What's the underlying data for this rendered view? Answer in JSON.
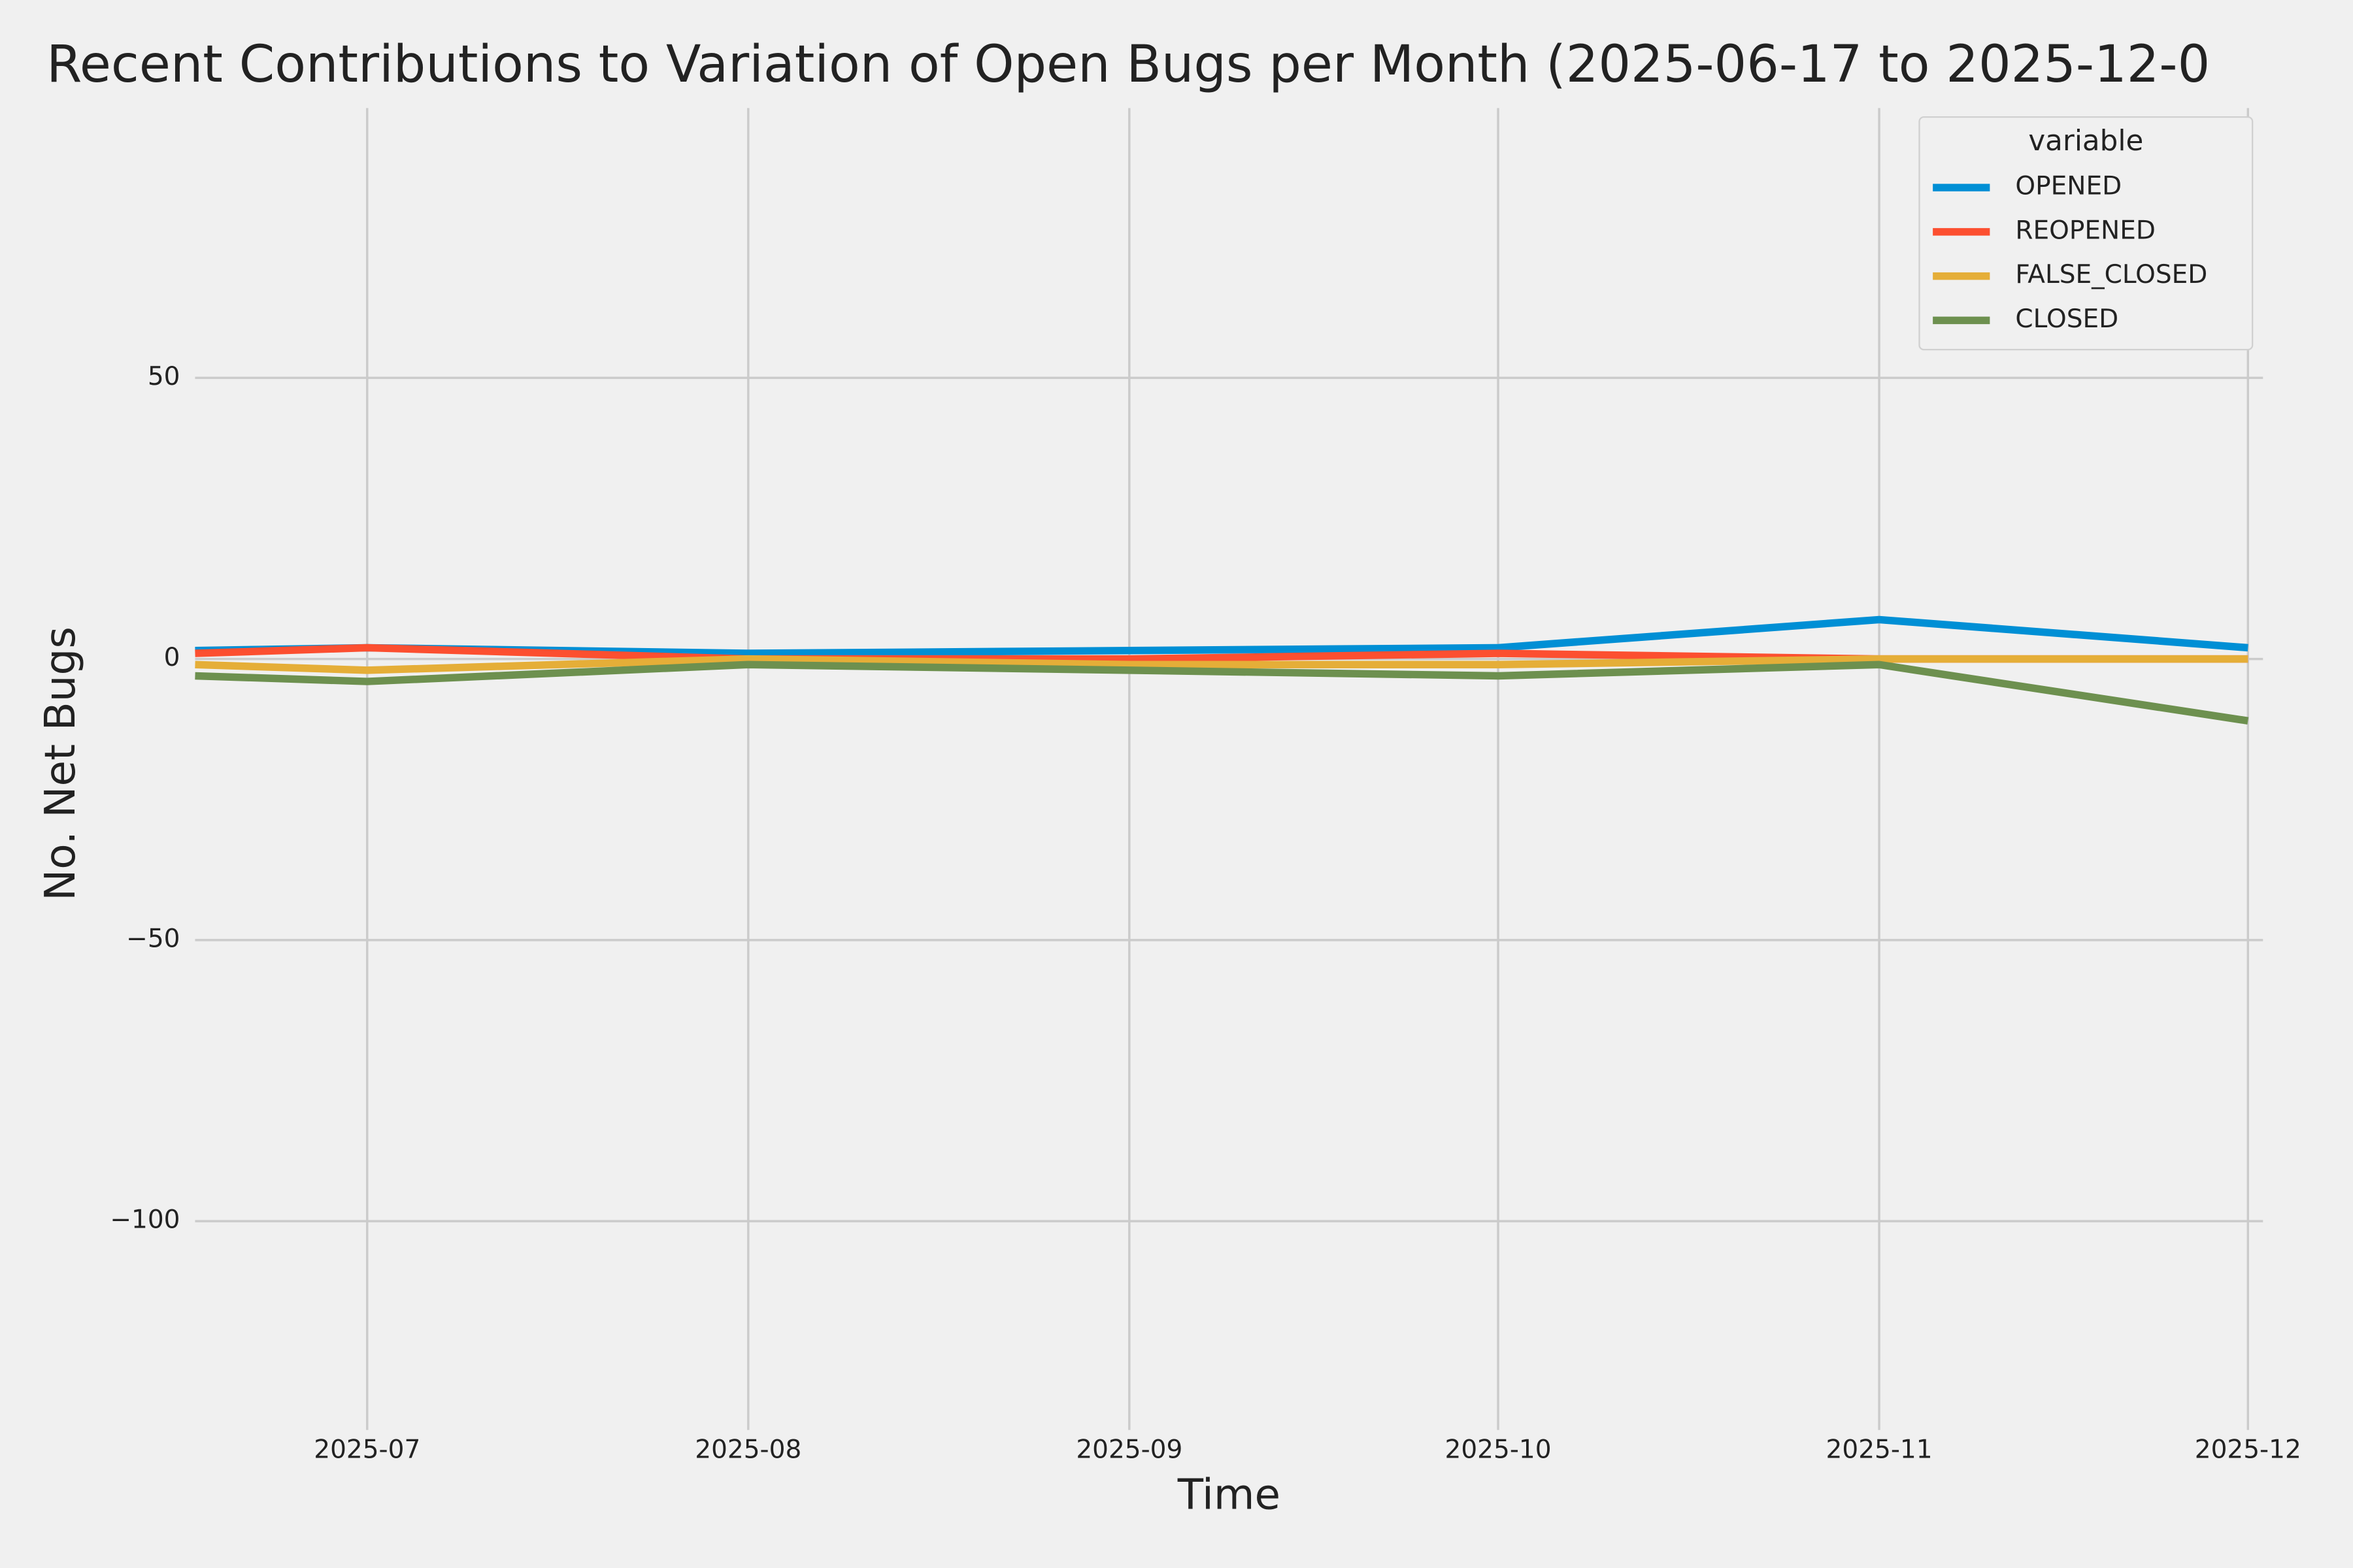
{
  "chart_data": {
    "type": "line",
    "title": "Recent Contributions to Variation of Open Bugs per Month (2025-06-17 to 2025-12-0",
    "x_label": "Time",
    "y_label": "No. Net Bugs",
    "x": [
      "2025-06-17",
      "2025-07",
      "2025-08",
      "2025-09",
      "2025-10",
      "2025-11",
      "2025-12"
    ],
    "series": [
      {
        "name": "OPENED",
        "color": "#008fd5",
        "values": [
          1.5,
          2,
          1,
          1.5,
          2,
          7,
          2
        ]
      },
      {
        "name": "REOPENED",
        "color": "#fc4f30",
        "values": [
          1,
          2,
          0,
          0,
          1,
          0,
          0
        ]
      },
      {
        "name": "FALSE_CLOSED",
        "color": "#e5ae38",
        "values": [
          -1,
          -2,
          0,
          -1,
          -1,
          0,
          0
        ]
      },
      {
        "name": "CLOSED",
        "color": "#6d904f",
        "values": [
          -3,
          -4,
          -1,
          -2,
          -3,
          -1,
          -11
        ]
      }
    ],
    "xlim": [
      "2025-06-17",
      "2025-12"
    ],
    "xticks": [
      "2025-07",
      "2025-08",
      "2025-09",
      "2025-10",
      "2025-11",
      "2025-12"
    ],
    "ylim": [
      -135,
      98
    ],
    "yticks": [
      {
        "value": -100,
        "label": "−100"
      },
      {
        "value": -50,
        "label": "−50"
      },
      0,
      50
    ],
    "grid": true,
    "legend_title": "variable",
    "legend_position": "upper right"
  }
}
